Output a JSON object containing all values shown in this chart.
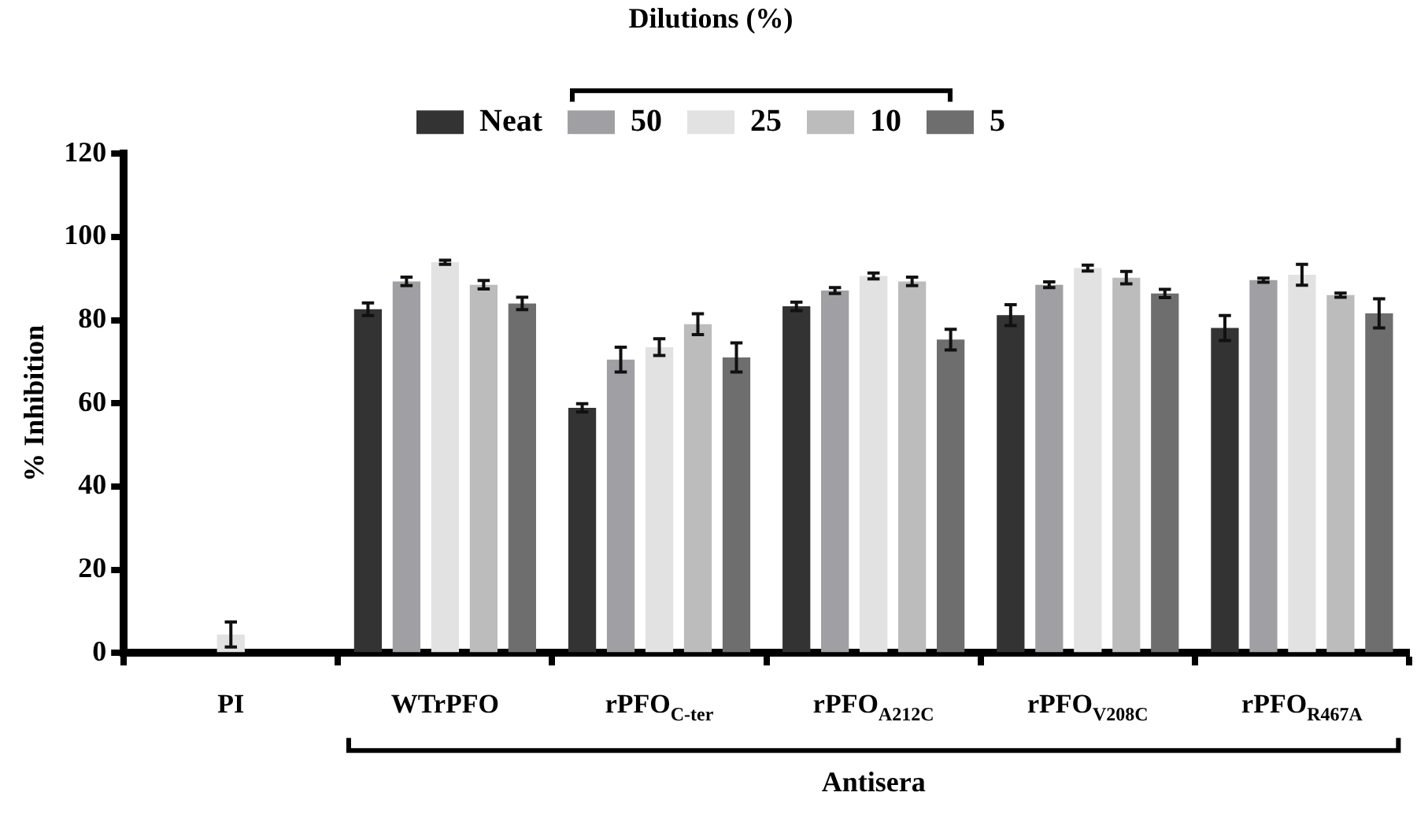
{
  "chart_data": {
    "type": "bar",
    "ylabel": "% Inhibition",
    "xlabel": "Antisera",
    "legend_title": "Dilutions (%)",
    "legend": "top",
    "grid": false,
    "categories": [
      "PI",
      "WTrPFO",
      "rPFO$_{C-ter}$",
      "rPFO$_{A212C}$",
      "rPFO$_{V208C}$",
      "rPFO$_{R467A}$"
    ],
    "series": [
      {
        "name": "Neat",
        "color": "#333333",
        "values": [
          null,
          82.6,
          58.9,
          83.3,
          81.2,
          78.1
        ],
        "errors": [
          null,
          1.5,
          1,
          1,
          2.5,
          3
        ]
      },
      {
        "name": "50",
        "color": "#a0a0a4",
        "values": [
          null,
          89.3,
          70.5,
          87.1,
          88.5,
          89.6
        ],
        "errors": [
          null,
          1,
          3,
          0.7,
          0.7,
          0.5
        ]
      },
      {
        "name": "25",
        "color": "#e2e2e2",
        "values": [
          4.4,
          93.9,
          73.5,
          90.6,
          92.5,
          90.9
        ],
        "errors": [
          3,
          0.5,
          2,
          0.7,
          0.7,
          2.5
        ]
      },
      {
        "name": "10",
        "color": "#bcbcbc",
        "values": [
          null,
          88.5,
          79,
          89.3,
          90.2,
          86
        ],
        "errors": [
          null,
          1,
          2.5,
          1,
          1.5,
          0.5
        ]
      },
      {
        "name": "5",
        "color": "#6e6e6e",
        "values": [
          null,
          84,
          71,
          75.3,
          86.4,
          81.6
        ],
        "errors": [
          null,
          1.5,
          3.5,
          2.5,
          1,
          3.5
        ]
      }
    ],
    "ylim": [
      0,
      120
    ],
    "yticks": [
      0,
      20,
      40,
      60,
      80,
      100,
      120
    ]
  }
}
